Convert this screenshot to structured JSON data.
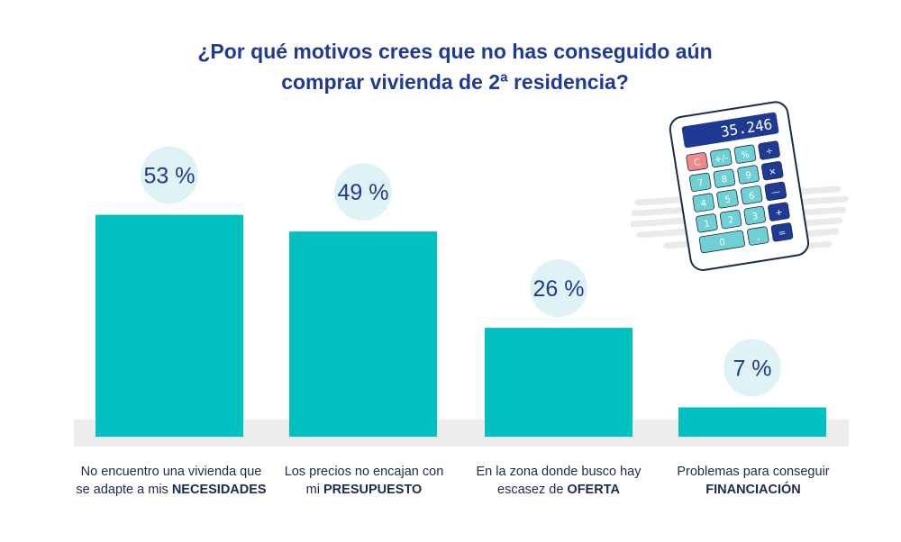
{
  "title_line1": "¿Por qué motivos crees que no has conseguido aún",
  "title_line2": "comprar vivienda de 2ª residencia?",
  "colors": {
    "bar": "#00c0c0",
    "bubble": "#dff3f7",
    "title": "#1f3a93",
    "baseline": "#ececec",
    "text": "#1c2b4a"
  },
  "calculator": {
    "display": "35.246",
    "keys": [
      "C",
      "+/-",
      "%",
      "÷",
      "7",
      "8",
      "9",
      "×",
      "4",
      "5",
      "6",
      "—",
      "1",
      "2",
      "3",
      "+",
      "0",
      ",",
      "="
    ]
  },
  "chart_data": {
    "type": "bar",
    "ylim": [
      0,
      100
    ],
    "categories": [
      "No encuentro una vivienda que se adapte a mis NECESIDADES",
      "Los precios no encajan con mi PRESUPUESTO",
      "En la zona donde busco hay escasez de OFERTA",
      "Problemas para conseguir FINANCIACIÓN"
    ],
    "values": [
      53,
      49,
      26,
      7
    ],
    "value_labels": [
      "53 %",
      "49 %",
      "26 %",
      "7 %"
    ],
    "labels": [
      {
        "line1": "No encuentro una vivienda que",
        "line2_plain": "se adapte a mis ",
        "line2_bold": "NECESIDADES"
      },
      {
        "line1": "Los precios no encajan con",
        "line2_plain": "mi ",
        "line2_bold": "PRESUPUESTO"
      },
      {
        "line1": "En la zona donde busco hay",
        "line2_plain": "escasez de ",
        "line2_bold": "OFERTA"
      },
      {
        "line1": "Problemas para conseguir",
        "line2_plain": "",
        "line2_bold": "FINANCIACIÓN"
      }
    ]
  }
}
